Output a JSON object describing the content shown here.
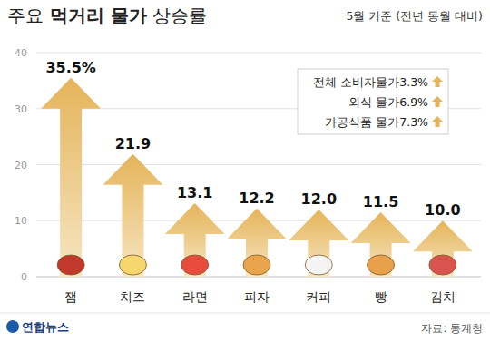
{
  "chart_data": {
    "type": "bar",
    "title": "주요 먹거리 물가 상승률",
    "subtitle": "5월 기준 (전년 동월 대비)",
    "categories": [
      "잼",
      "치즈",
      "라면",
      "피자",
      "커피",
      "빵",
      "김치"
    ],
    "values": [
      35.5,
      21.9,
      13.1,
      12.2,
      12.0,
      11.5,
      10.0
    ],
    "value_labels": [
      "35.5%",
      "21.9",
      "13.1",
      "12.2",
      "12.0",
      "11.5",
      "10.0"
    ],
    "color": "#e5b45a",
    "ylim": [
      0,
      40
    ],
    "yticks": [
      0,
      10,
      20,
      30,
      40
    ],
    "grid": true,
    "data_labels": true,
    "annotations": [
      "전체 소비자물가3.3%",
      "외식 물가6.9%",
      "가공식품 물가7.3%"
    ],
    "logo": "연합뉴스",
    "source": "자료: 통계청"
  }
}
